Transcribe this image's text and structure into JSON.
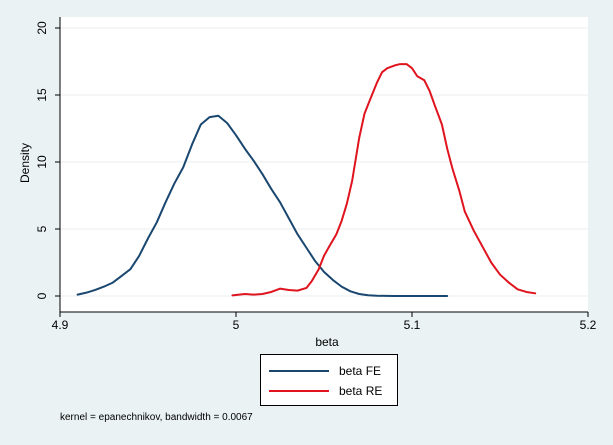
{
  "chart_data": {
    "type": "line",
    "xlabel": "beta",
    "ylabel": "Density",
    "xlim": [
      4.9,
      5.2
    ],
    "ylim": [
      0,
      20
    ],
    "xticks": [
      4.9,
      5,
      5.1,
      5.2
    ],
    "xtick_labels": [
      "4.9",
      "5",
      "5.1",
      "5.2"
    ],
    "yticks": [
      0,
      5,
      10,
      15,
      20
    ],
    "ytick_labels": [
      "0",
      "5",
      "10",
      "15",
      "20"
    ],
    "grid": "horizontal",
    "legend_position": "bottom",
    "series": [
      {
        "name": "beta FE",
        "color": "#1a476f",
        "x": [
          4.91,
          4.915,
          4.92,
          4.925,
          4.93,
          4.935,
          4.94,
          4.945,
          4.95,
          4.955,
          4.96,
          4.965,
          4.97,
          4.975,
          4.98,
          4.985,
          4.99,
          4.995,
          5.0,
          5.005,
          5.01,
          5.015,
          5.02,
          5.025,
          5.03,
          5.035,
          5.04,
          5.045,
          5.05,
          5.055,
          5.06,
          5.065,
          5.07,
          5.075,
          5.08,
          5.085,
          5.09,
          5.1,
          5.11,
          5.12
        ],
        "y": [
          0.1,
          0.25,
          0.45,
          0.7,
          1.0,
          1.5,
          2.0,
          3.0,
          4.3,
          5.5,
          7.0,
          8.4,
          9.6,
          11.3,
          12.8,
          13.35,
          13.45,
          12.9,
          12.0,
          11.0,
          10.1,
          9.1,
          8.0,
          7.0,
          5.8,
          4.6,
          3.6,
          2.6,
          1.8,
          1.2,
          0.7,
          0.35,
          0.15,
          0.06,
          0.02,
          0.01,
          0.0,
          0.0,
          0.0,
          0.0
        ]
      },
      {
        "name": "beta RE",
        "color": "#e0141e",
        "x": [
          4.998,
          5.005,
          5.01,
          5.015,
          5.02,
          5.025,
          5.03,
          5.035,
          5.04,
          5.043,
          5.047,
          5.05,
          5.053,
          5.057,
          5.06,
          5.063,
          5.066,
          5.07,
          5.073,
          5.076,
          5.08,
          5.083,
          5.086,
          5.09,
          5.093,
          5.097,
          5.1,
          5.103,
          5.107,
          5.11,
          5.113,
          5.117,
          5.12,
          5.123,
          5.127,
          5.13,
          5.135,
          5.14,
          5.145,
          5.15,
          5.155,
          5.16,
          5.165,
          5.17
        ],
        "y": [
          0.05,
          0.15,
          0.1,
          0.15,
          0.3,
          0.55,
          0.45,
          0.4,
          0.6,
          1.1,
          2.0,
          3.0,
          3.7,
          4.6,
          5.6,
          6.9,
          8.6,
          11.8,
          13.6,
          14.6,
          15.9,
          16.7,
          17.0,
          17.2,
          17.3,
          17.3,
          17.0,
          16.4,
          16.1,
          15.3,
          14.2,
          12.8,
          11.0,
          9.5,
          7.8,
          6.3,
          4.9,
          3.7,
          2.5,
          1.6,
          1.0,
          0.5,
          0.3,
          0.2
        ]
      }
    ]
  },
  "legend": {
    "items": [
      {
        "label": "beta FE",
        "color": "#1a476f"
      },
      {
        "label": "beta RE",
        "color": "#e0141e"
      }
    ]
  },
  "note": "kernel = epanechnikov, bandwidth = 0.0067"
}
